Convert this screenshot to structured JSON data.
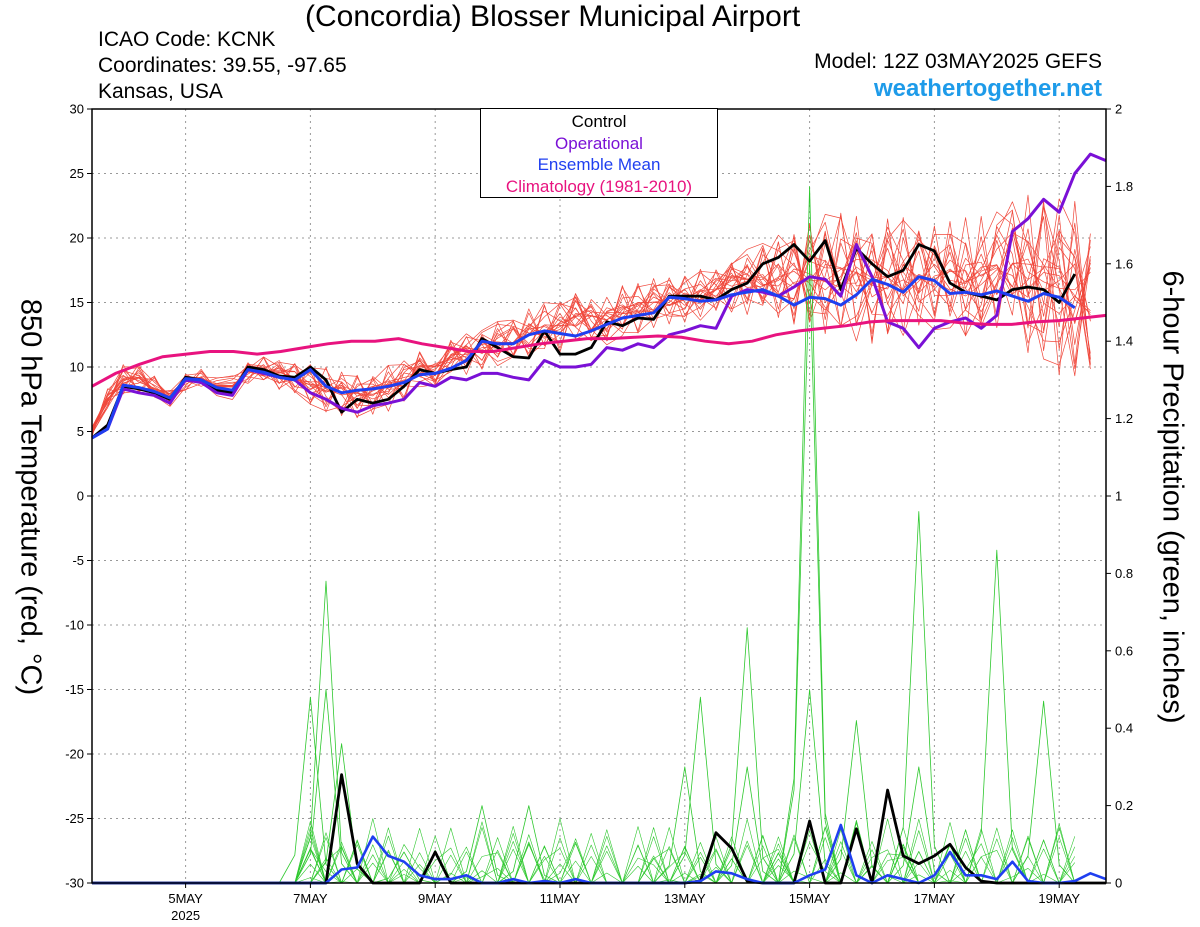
{
  "header": {
    "title": "(Concordia) Blosser Municipal Airport",
    "icao": "ICAO Code: KCNK",
    "coords": "Coordinates: 39.55, -97.65",
    "region": "Kansas, USA",
    "model": "Model: 12Z 03MAY2025 GEFS",
    "site": "weathertogether.net"
  },
  "legend": {
    "control": "Control",
    "operational": "Operational",
    "ensemble_mean": "Ensemble Mean",
    "climatology": "Climatology (1981-2010)"
  },
  "colors": {
    "control": "#000000",
    "operational": "#7a10d6",
    "ensemble_mean": "#1f3ff0",
    "climatology": "#e8137f",
    "temp_members": "#f0483c",
    "precip_members": "#2ec82e",
    "site_link": "#1e9be9"
  },
  "chart_data": {
    "type": "line",
    "ylabel_left": "850 hPa Temperature (red, °C)",
    "ylabel_right": "6-hour Precipitation (green, inches)",
    "ylim_left": [
      -30,
      30
    ],
    "ylim_right": [
      0,
      2
    ],
    "yticks_left": [
      "30",
      "25",
      "20",
      "15",
      "10",
      "5",
      "0",
      "-5",
      "-10",
      "-15",
      "-20",
      "-25",
      "-30"
    ],
    "yticks_right": [
      "2",
      "1.8",
      "1.6",
      "1.4",
      "1.2",
      "1",
      "0.8",
      "0.6",
      "0.4",
      "0.2",
      "0"
    ],
    "x_start": "03MAY2025 12Z",
    "x_step_hours": 6,
    "xticks": [
      {
        "label": "5MAY",
        "sub": "2025",
        "index": 6
      },
      {
        "label": "7MAY",
        "sub": "",
        "index": 14
      },
      {
        "label": "9MAY",
        "sub": "",
        "index": 22
      },
      {
        "label": "11MAY",
        "sub": "",
        "index": 30
      },
      {
        "label": "13MAY",
        "sub": "",
        "index": 38
      },
      {
        "label": "15MAY",
        "sub": "",
        "index": 46
      },
      {
        "label": "17MAY",
        "sub": "",
        "index": 54
      },
      {
        "label": "19MAY",
        "sub": "",
        "index": 62
      }
    ],
    "temperature_members_envelope": {
      "low": [
        4.5,
        6.5,
        7.5,
        7.8,
        7.2,
        6.8,
        8,
        8.2,
        7.5,
        7.2,
        8.5,
        8.5,
        8,
        7.5,
        6.8,
        6,
        5.5,
        5.5,
        5.8,
        6.2,
        7,
        7.8,
        8.2,
        8.8,
        9,
        9.5,
        9.5,
        9.8,
        10,
        10.2,
        10.5,
        10.8,
        11,
        11.2,
        11.5,
        12,
        12.5,
        12.8,
        13,
        13.2,
        13.5,
        13.8,
        13.5,
        13.2,
        12.8,
        12.5,
        12,
        11.5,
        11.2,
        11,
        10.8,
        11,
        11.5,
        12,
        12,
        11.8,
        11.5,
        11,
        10.5,
        10,
        9.5,
        8.5,
        7.5,
        7,
        6.5
      ],
      "high": [
        5.5,
        8.5,
        10.5,
        10.5,
        9.5,
        8.5,
        9.8,
        10,
        9.5,
        9.8,
        10.8,
        11,
        11,
        10.8,
        10.5,
        10.5,
        10.5,
        10.2,
        10.2,
        10.5,
        11,
        11.5,
        12,
        12.5,
        13,
        13.5,
        14,
        14.5,
        15,
        15.5,
        16,
        16.5,
        17,
        17,
        16.8,
        17,
        17.5,
        17.5,
        17.5,
        18,
        18.5,
        19.5,
        20,
        20.5,
        21,
        21.5,
        22,
        23,
        23.5,
        23,
        22.5,
        22.5,
        22.5,
        22,
        22,
        22.5,
        22.5,
        23,
        24,
        25,
        25.5,
        26,
        25.5,
        24.5,
        23.5
      ]
    },
    "temperature_series": [
      {
        "name": "Control",
        "color_key": "control",
        "values": [
          4.5,
          5.5,
          8.5,
          8.3,
          8,
          7.5,
          9.2,
          9,
          8.2,
          8,
          10,
          9.8,
          9.3,
          9.2,
          10,
          9,
          6.5,
          7.5,
          7.2,
          7.5,
          8.5,
          9.8,
          9.5,
          9.8,
          10,
          12.2,
          11.5,
          10.8,
          10.7,
          12.8,
          11,
          11,
          11.5,
          13.5,
          13.2,
          13.8,
          13.7,
          15.5,
          15.5,
          15.5,
          15.2,
          16,
          16.5,
          18,
          18.5,
          19.5,
          18.2,
          19.8,
          16,
          19.2,
          18,
          17,
          17.5,
          19.5,
          19,
          16.5,
          15.8,
          15.5,
          15.2,
          16,
          16.2,
          16,
          15,
          17.2
        ]
      },
      {
        "name": "Operational",
        "color_key": "operational",
        "values": [
          4.5,
          5.2,
          8.3,
          8,
          7.8,
          7.2,
          9,
          8.8,
          8,
          7.8,
          9.8,
          9.5,
          9.2,
          9,
          8,
          7.5,
          6.8,
          6.5,
          7,
          7.2,
          7.5,
          8.8,
          8.5,
          9.2,
          9,
          9.5,
          9.5,
          9.2,
          9,
          10.5,
          10,
          10,
          10.2,
          11.5,
          11.3,
          11.8,
          11.5,
          12.5,
          12.8,
          13.2,
          13,
          15.5,
          16,
          15.8,
          15.5,
          16.2,
          17,
          16.8,
          15.5,
          19.5,
          17,
          13.5,
          13,
          11.5,
          13,
          13.5,
          13.8,
          13,
          14,
          20.5,
          21.5,
          23,
          22,
          25,
          26.5,
          26
        ]
      },
      {
        "name": "Ensemble Mean",
        "color_key": "ensemble_mean",
        "values": [
          4.5,
          5.2,
          8.6,
          8.4,
          8.1,
          7.6,
          9.1,
          9,
          8.4,
          8.2,
          9.8,
          9.6,
          9.2,
          9,
          9.8,
          8.5,
          8,
          8.2,
          8.3,
          8.5,
          8.8,
          9.4,
          9.5,
          9.9,
          10.5,
          12,
          11.8,
          11.8,
          12.5,
          12.8,
          12.6,
          12.4,
          12.8,
          13.3,
          13.8,
          14,
          14.2,
          15.4,
          15.3,
          15.1,
          15.2,
          15.6,
          15.8,
          16,
          15.5,
          14.8,
          15.4,
          15.3,
          14.8,
          15.6,
          16.8,
          16.4,
          15.8,
          17,
          16.7,
          15.7,
          15.8,
          15.6,
          15.9,
          15.5,
          15.1,
          15.7,
          15.4,
          14.6
        ]
      },
      {
        "name": "Climatology (1981-2010)",
        "color_key": "climatology",
        "values": [
          8.5,
          9.5,
          10.2,
          10.8,
          11,
          11.2,
          11.2,
          11,
          11.2,
          11.5,
          11.8,
          12,
          12,
          12.2,
          11.8,
          11.5,
          11.2,
          11.2,
          11.5,
          11.8,
          12,
          12.2,
          12.2,
          12.3,
          12.4,
          12.3,
          12,
          11.8,
          12,
          12.5,
          12.8,
          13,
          13.2,
          13.5,
          13.6,
          13.6,
          13.6,
          13.4,
          13.3,
          13.3,
          13.5,
          13.6,
          13.8,
          14
        ]
      }
    ],
    "precip_members_peaks": [
      {
        "index": 14,
        "value": 0.48
      },
      {
        "index": 15,
        "value": 0.78
      },
      {
        "index": 15,
        "value": 0.5
      },
      {
        "index": 16,
        "value": 0.36
      },
      {
        "index": 20,
        "value": 0.08
      },
      {
        "index": 25,
        "value": 0.2
      },
      {
        "index": 28,
        "value": 0.2
      },
      {
        "index": 38,
        "value": 0.3
      },
      {
        "index": 39,
        "value": 0.48
      },
      {
        "index": 42,
        "value": 0.3
      },
      {
        "index": 42,
        "value": 0.66
      },
      {
        "index": 46,
        "value": 1.8
      },
      {
        "index": 46,
        "value": 1.6
      },
      {
        "index": 46,
        "value": 0.5
      },
      {
        "index": 49,
        "value": 0.42
      },
      {
        "index": 53,
        "value": 0.96
      },
      {
        "index": 53,
        "value": 0.3
      },
      {
        "index": 58,
        "value": 0.86
      },
      {
        "index": 61,
        "value": 0.47
      }
    ],
    "precip_series": [
      {
        "name": "Control",
        "color_key": "control",
        "values": [
          0,
          0,
          0,
          0,
          0,
          0,
          0,
          0,
          0,
          0,
          0,
          0,
          0,
          0,
          0,
          0,
          0.28,
          0.05,
          0,
          0,
          0,
          0,
          0.08,
          0,
          0,
          0,
          0,
          0,
          0,
          0,
          0,
          0,
          0,
          0,
          0,
          0,
          0,
          0,
          0,
          0.005,
          0.13,
          0.09,
          0.005,
          0,
          0,
          0,
          0.16,
          0,
          0,
          0.14,
          0,
          0.24,
          0.07,
          0.05,
          0.07,
          0.1,
          0.04,
          0.005,
          0,
          0,
          0,
          0,
          0,
          0,
          0,
          0,
          0
        ]
      },
      {
        "name": "Ensemble Mean",
        "color_key": "ensemble_mean",
        "values": [
          0,
          0,
          0,
          0,
          0,
          0,
          0,
          0,
          0,
          0,
          0,
          0,
          0,
          0,
          0,
          0,
          0.035,
          0.04,
          0.12,
          0.07,
          0.055,
          0.02,
          0.01,
          0.01,
          0.02,
          0,
          0,
          0.01,
          0,
          0.005,
          0,
          0.01,
          0,
          0,
          0,
          0,
          0,
          0,
          0,
          0.005,
          0.03,
          0.025,
          0.01,
          0,
          0,
          0,
          0.02,
          0.035,
          0.15,
          0.02,
          0,
          0.02,
          0.01,
          0,
          0.02,
          0.08,
          0.02,
          0.02,
          0.01,
          0.055,
          0.005,
          0,
          0,
          0.005,
          0.025,
          0.01
        ]
      }
    ]
  }
}
